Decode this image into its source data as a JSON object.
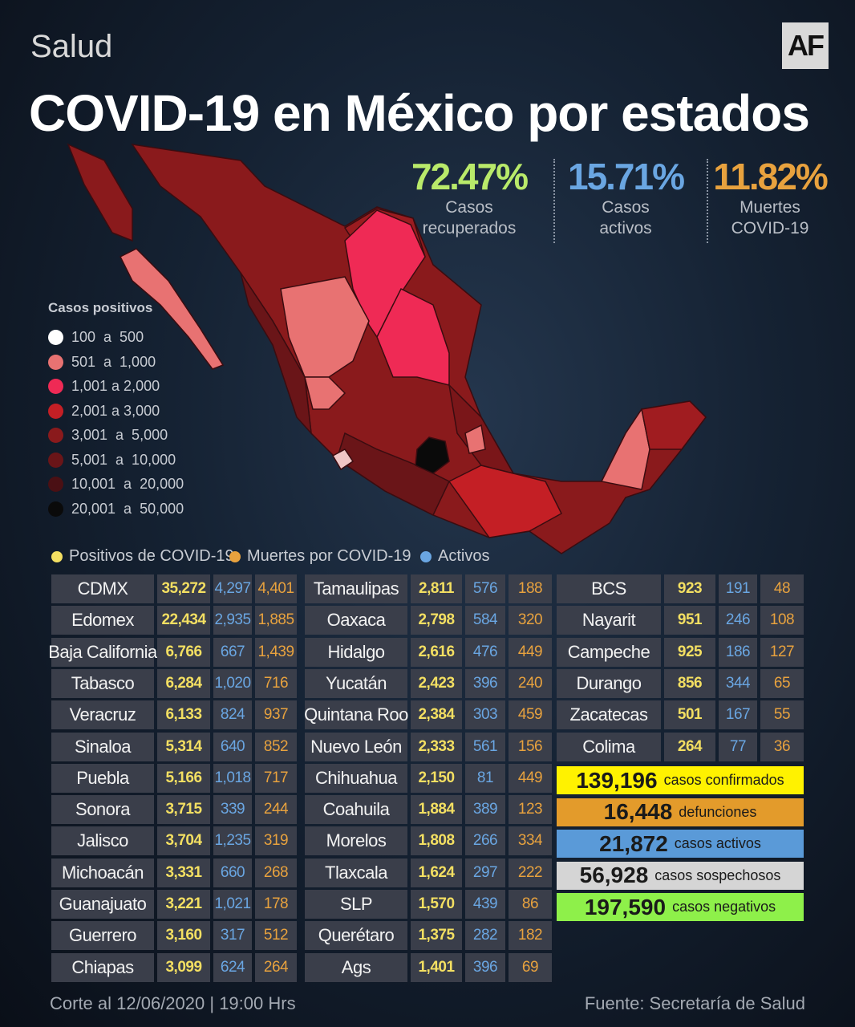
{
  "header": {
    "section": "Salud",
    "logo": "AF",
    "title": "COVID-19 en México por estados"
  },
  "stats": [
    {
      "value": "72.47%",
      "lines": [
        "Casos",
        "recuperados"
      ],
      "color": "#b9ea6a"
    },
    {
      "value": "15.71%",
      "lines": [
        "Casos",
        "activos"
      ],
      "color": "#6aa6e2"
    },
    {
      "value": "11.82%",
      "lines": [
        "Muertes",
        "COVID-19"
      ],
      "color": "#e8a23e"
    }
  ],
  "legend": {
    "title": "Casos positivos",
    "items": [
      {
        "label": "100  a  500",
        "color": "#ffffff"
      },
      {
        "label": "501  a  1,000",
        "color": "#e87272"
      },
      {
        "label": "1,001 a 2,000",
        "color": "#ef2a55"
      },
      {
        "label": "2,001 a 3,000",
        "color": "#c41f25"
      },
      {
        "label": "3,001  a  5,000",
        "color": "#8a1a1c"
      },
      {
        "label": "5,001  a  10,000",
        "color": "#6a1518"
      },
      {
        "label": "10,001  a  20,000",
        "color": "#4a1014"
      },
      {
        "label": "20,001  a  50,000",
        "color": "#0a0a0a"
      }
    ]
  },
  "key": [
    {
      "label": "Positivos de COVID-19",
      "color": "#f3df62"
    },
    {
      "label": "Muertes por COVID-19",
      "color": "#e8a23e"
    },
    {
      "label": "Activos",
      "color": "#6aa6e2"
    }
  ],
  "table": {
    "columns": [
      [
        [
          "CDMX",
          "35,272",
          "4,297",
          "4,401"
        ],
        [
          "Edomex",
          "22,434",
          "2,935",
          "1,885"
        ],
        [
          "Baja California",
          "6,766",
          "667",
          "1,439"
        ],
        [
          "Tabasco",
          "6,284",
          "1,020",
          "716"
        ],
        [
          "Veracruz",
          "6,133",
          "824",
          "937"
        ],
        [
          "Sinaloa",
          "5,314",
          "640",
          "852"
        ],
        [
          "Puebla",
          "5,166",
          "1,018",
          "717"
        ],
        [
          "Sonora",
          "3,715",
          "339",
          "244"
        ],
        [
          "Jalisco",
          "3,704",
          "1,235",
          "319"
        ],
        [
          "Michoacán",
          "3,331",
          "660",
          "268"
        ],
        [
          "Guanajuato",
          "3,221",
          "1,021",
          "178"
        ],
        [
          "Guerrero",
          "3,160",
          "317",
          "512"
        ],
        [
          "Chiapas",
          "3,099",
          "624",
          "264"
        ]
      ],
      [
        [
          "Tamaulipas",
          "2,811",
          "576",
          "188"
        ],
        [
          "Oaxaca",
          "2,798",
          "584",
          "320"
        ],
        [
          "Hidalgo",
          "2,616",
          "476",
          "449"
        ],
        [
          "Yucatán",
          "2,423",
          "396",
          "240"
        ],
        [
          "Quintana Roo",
          "2,384",
          "303",
          "459"
        ],
        [
          "Nuevo León",
          "2,333",
          "561",
          "156"
        ],
        [
          "Chihuahua",
          "2,150",
          "81",
          "449"
        ],
        [
          "Coahuila",
          "1,884",
          "389",
          "123"
        ],
        [
          "Morelos",
          "1,808",
          "266",
          "334"
        ],
        [
          "Tlaxcala",
          "1,624",
          "297",
          "222"
        ],
        [
          "SLP",
          "1,570",
          "439",
          "86"
        ],
        [
          "Querétaro",
          "1,375",
          "282",
          "182"
        ],
        [
          "Ags",
          "1,401",
          "396",
          "69"
        ]
      ],
      [
        [
          "BCS",
          "923",
          "191",
          "48"
        ],
        [
          "Nayarit",
          "951",
          "246",
          "108"
        ],
        [
          "Campeche",
          "925",
          "186",
          "127"
        ],
        [
          "Durango",
          "856",
          "344",
          "65"
        ],
        [
          "Zacatecas",
          "501",
          "167",
          "55"
        ],
        [
          "Colima",
          "264",
          "77",
          "36"
        ]
      ]
    ]
  },
  "totals": [
    {
      "value": "139,196",
      "label": "casos confirmados",
      "color": "#fff200"
    },
    {
      "value": "16,448",
      "label": "defunciones",
      "color": "#e39b2b"
    },
    {
      "value": "21,872",
      "label": "casos activos",
      "color": "#5a9ad8"
    },
    {
      "value": "56,928",
      "label": "casos sospechosos",
      "color": "#d5d5d5"
    },
    {
      "value": "197,590",
      "label": "casos negativos",
      "color": "#8ef04a"
    }
  ],
  "footer": {
    "date": "Corte al 12/06/2020 | 19:00 Hrs",
    "source": "Fuente: Secretaría de Salud"
  }
}
